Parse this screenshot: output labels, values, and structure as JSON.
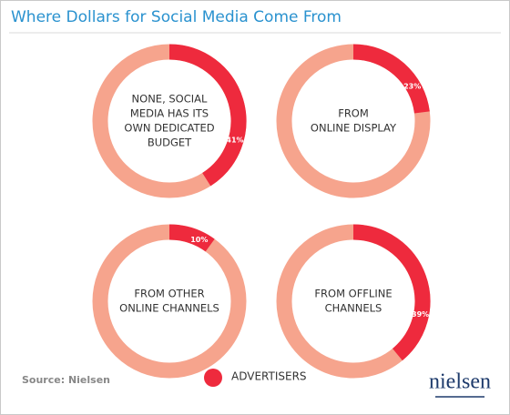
{
  "title": "Where Dollars for Social Media Come From",
  "source": "Source: Nielsen",
  "logo": "nielsen",
  "chart_data": [
    {
      "type": "donut",
      "label": [
        "NONE, SOCIAL",
        "MEDIA HAS ITS",
        "OWN DEDICATED",
        "BUDGET"
      ],
      "track_color": "#f6a48d",
      "series": [
        {
          "name": "ADVERTISERS",
          "color": "#ee2a3d",
          "values": [
            41
          ],
          "value_labels": [
            "41%"
          ]
        }
      ]
    },
    {
      "type": "donut",
      "label": [
        "FROM",
        "ONLINE DISPLAY"
      ],
      "track_color": "#f6a48d",
      "series": [
        {
          "name": "ADVERTISERS",
          "color": "#ee2a3d",
          "values": [
            23
          ],
          "value_labels": [
            "23%"
          ]
        }
      ]
    },
    {
      "type": "donut",
      "label": [
        "FROM OTHER",
        "ONLINE CHANNELS"
      ],
      "track_color": "#f6a48d",
      "series": [
        {
          "name": "ADVERTISERS",
          "color": "#ee2a3d",
          "values": [
            10
          ],
          "value_labels": [
            "10%"
          ]
        }
      ]
    },
    {
      "type": "donut",
      "label": [
        "FROM OFFLINE",
        "CHANNELS"
      ],
      "track_color": "#f6a48d",
      "series": [
        {
          "name": "ADVERTISERS",
          "color": "#ee2a3d",
          "values": [
            39
          ],
          "value_labels": [
            "39%"
          ]
        }
      ]
    }
  ]
}
